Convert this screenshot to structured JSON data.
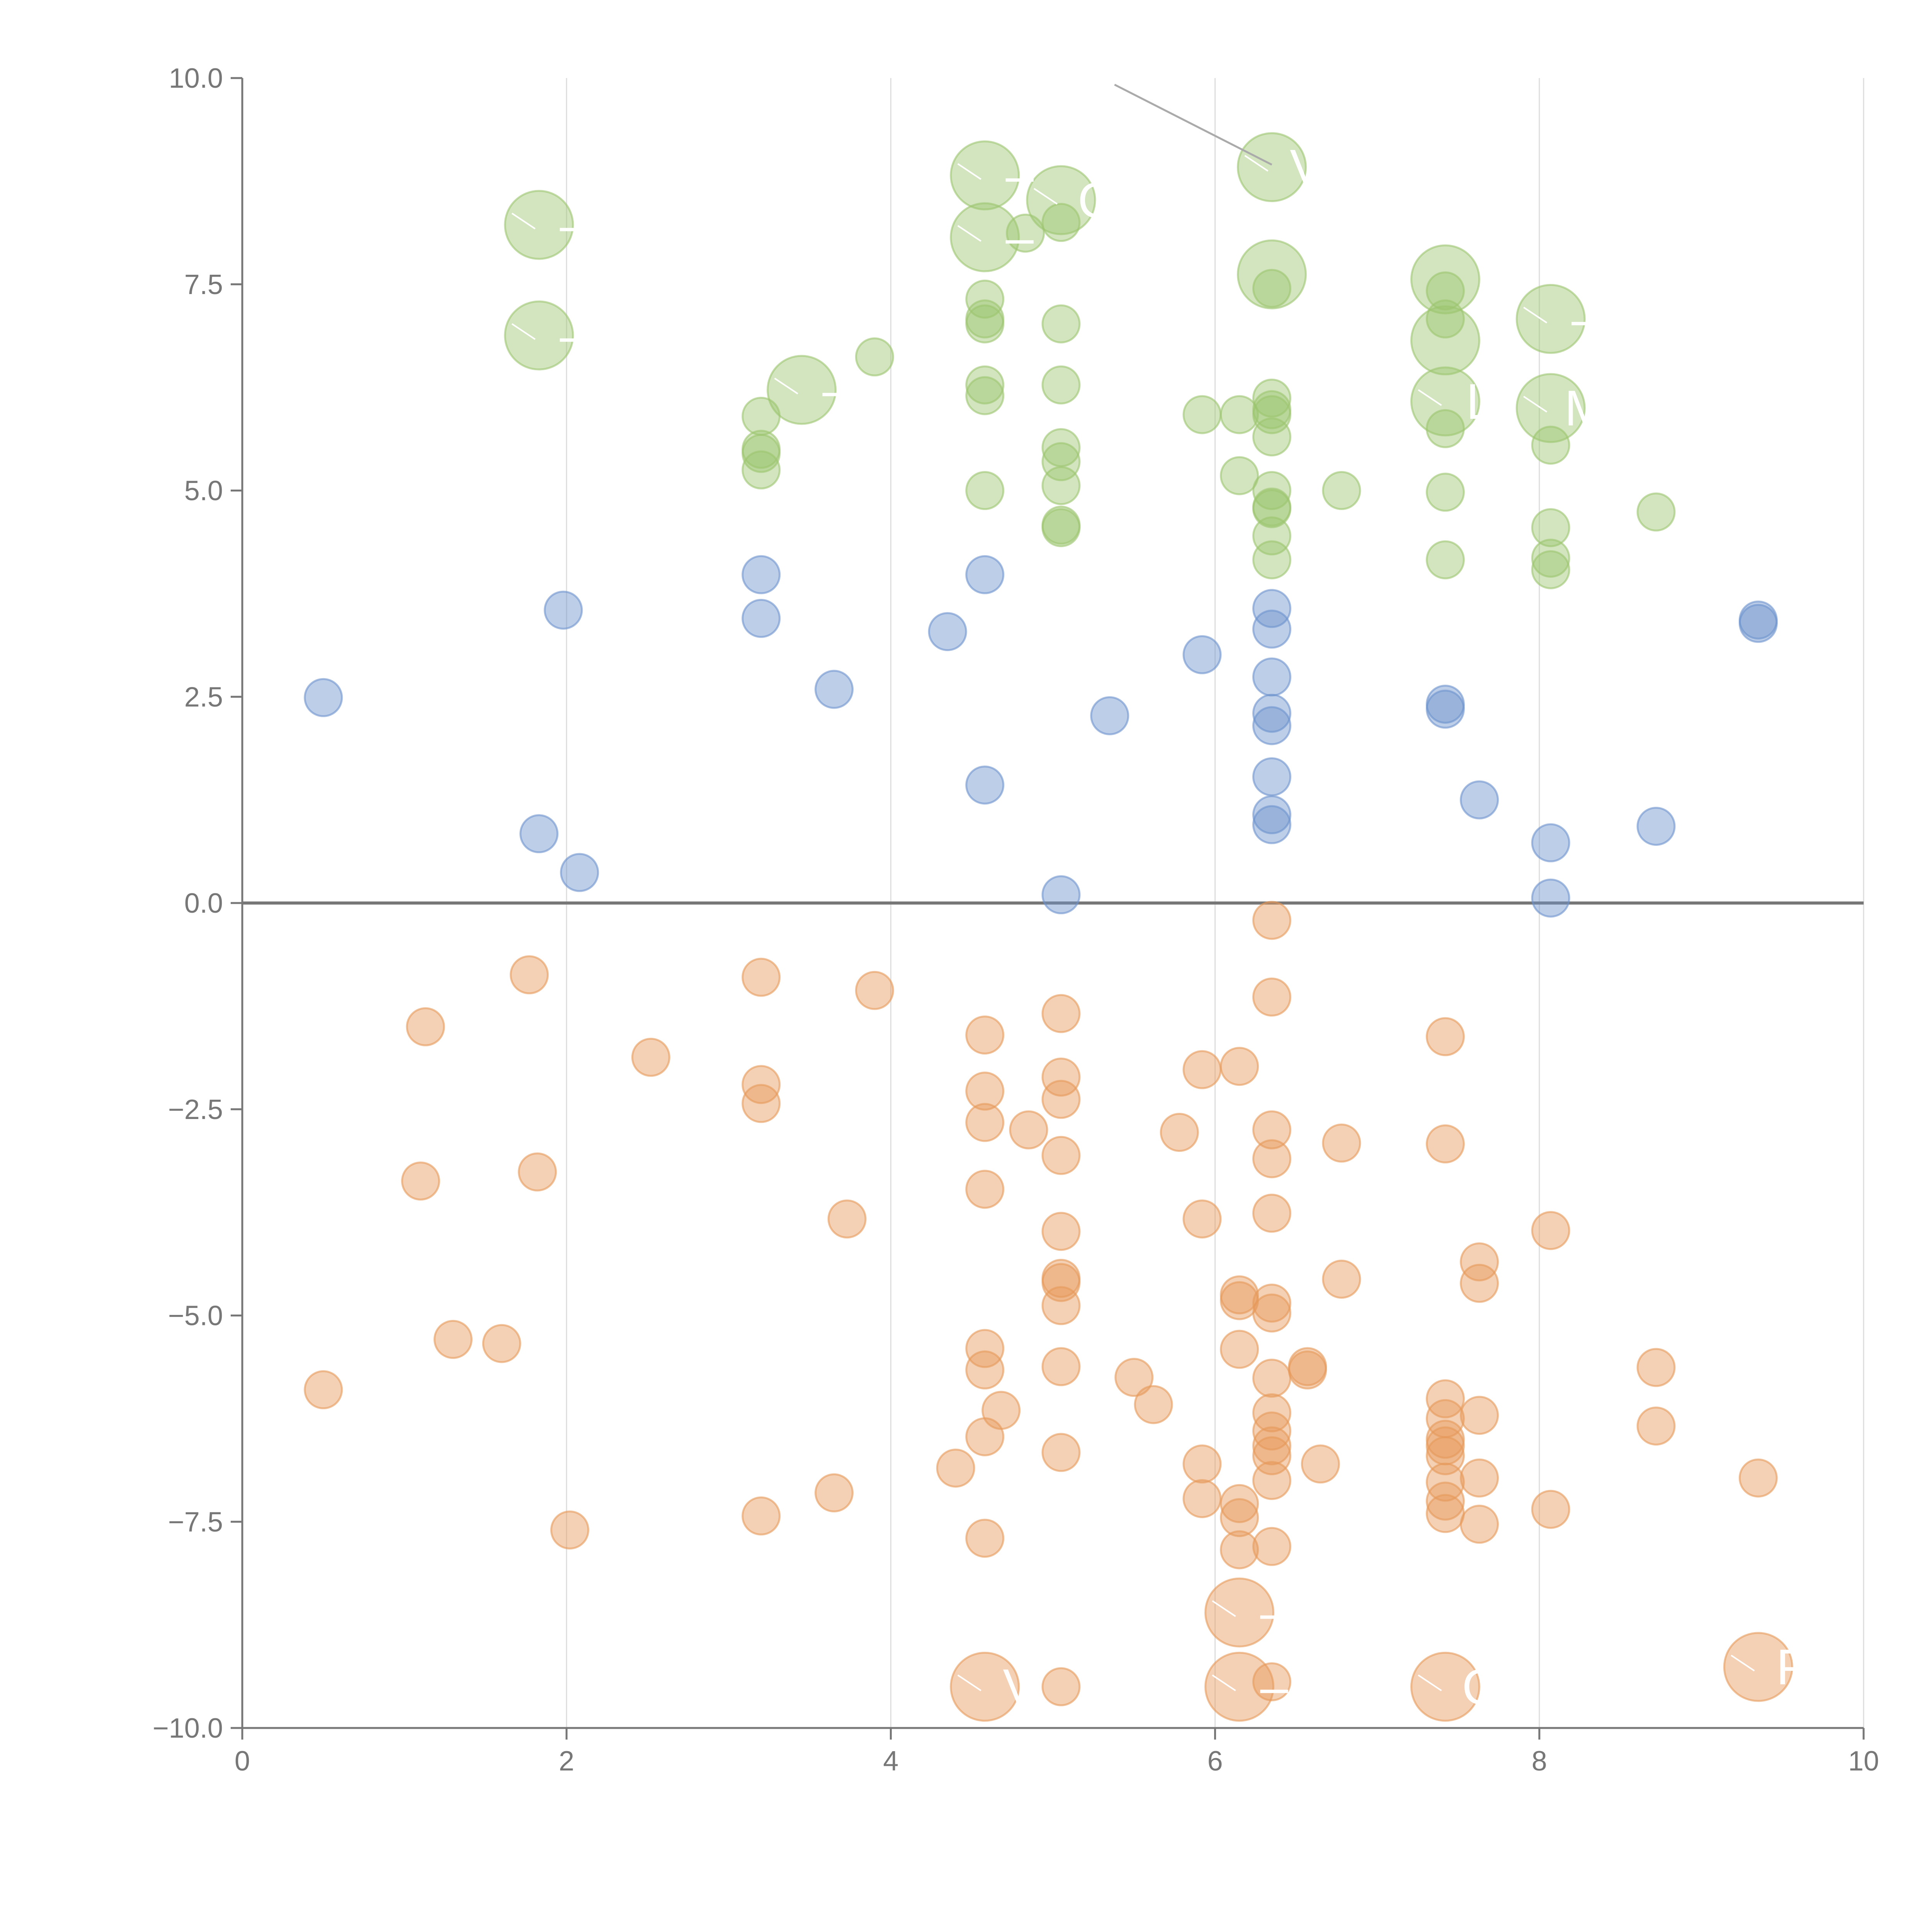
{
  "chart_data": {
    "type": "scatter",
    "title": "",
    "xlabel": "",
    "ylabel": "",
    "xlim": [
      0,
      10
    ],
    "ylim": [
      -10,
      10
    ],
    "x_ticks": [
      "0",
      "2",
      "4",
      "6",
      "8",
      "10"
    ],
    "y_ticks": [
      "10.0",
      "7.5",
      "5.0",
      "2.5",
      "0.0",
      "−2.5",
      "−5.0",
      "−7.5",
      "−10.0"
    ],
    "grid": "vertical",
    "zero_line": true,
    "colors": {
      "green": "#9cc56f",
      "blue": "#6d93cd",
      "orange": "#e6995a",
      "axis": "#777777",
      "grid": "#dddddd"
    },
    "series": [
      {
        "name": "green",
        "points": [
          {
            "x": 1.83,
            "y": 8.22,
            "big": true,
            "label": "–"
          },
          {
            "x": 1.83,
            "y": 6.88,
            "big": true,
            "label": "–"
          },
          {
            "x": 3.45,
            "y": 6.22,
            "big": true,
            "label": "–"
          },
          {
            "x": 4.58,
            "y": 8.82,
            "big": true,
            "label": "–"
          },
          {
            "x": 4.58,
            "y": 8.07,
            "big": true,
            "label": "–"
          },
          {
            "x": 5.05,
            "y": 8.52,
            "big": true,
            "label": "C"
          },
          {
            "x": 6.35,
            "y": 8.92,
            "big": true,
            "label": "V"
          },
          {
            "x": 6.35,
            "y": 7.62,
            "big": true,
            "label": ""
          },
          {
            "x": 7.42,
            "y": 7.56,
            "big": true,
            "label": ""
          },
          {
            "x": 7.42,
            "y": 6.82,
            "big": true,
            "label": ""
          },
          {
            "x": 7.42,
            "y": 6.08,
            "big": true,
            "label": "L"
          },
          {
            "x": 8.07,
            "y": 7.08,
            "big": true,
            "label": "–"
          },
          {
            "x": 8.07,
            "y": 6.0,
            "big": true,
            "label": "M"
          },
          {
            "x": 3.2,
            "y": 5.9
          },
          {
            "x": 3.2,
            "y": 5.5
          },
          {
            "x": 3.2,
            "y": 5.45
          },
          {
            "x": 3.2,
            "y": 5.25
          },
          {
            "x": 3.9,
            "y": 6.62
          },
          {
            "x": 4.58,
            "y": 7.32
          },
          {
            "x": 4.58,
            "y": 7.08
          },
          {
            "x": 4.58,
            "y": 7.02
          },
          {
            "x": 4.58,
            "y": 6.28
          },
          {
            "x": 4.58,
            "y": 6.15
          },
          {
            "x": 4.58,
            "y": 5.0
          },
          {
            "x": 4.83,
            "y": 8.12
          },
          {
            "x": 5.05,
            "y": 8.25
          },
          {
            "x": 5.05,
            "y": 7.02
          },
          {
            "x": 5.05,
            "y": 6.28
          },
          {
            "x": 5.05,
            "y": 5.52
          },
          {
            "x": 5.05,
            "y": 5.35
          },
          {
            "x": 5.05,
            "y": 5.06
          },
          {
            "x": 5.05,
            "y": 4.58
          },
          {
            "x": 5.05,
            "y": 4.55
          },
          {
            "x": 5.92,
            "y": 5.92
          },
          {
            "x": 6.15,
            "y": 5.92
          },
          {
            "x": 6.15,
            "y": 5.18
          },
          {
            "x": 6.35,
            "y": 7.45
          },
          {
            "x": 6.35,
            "y": 6.12
          },
          {
            "x": 6.35,
            "y": 5.98
          },
          {
            "x": 6.35,
            "y": 5.92
          },
          {
            "x": 6.35,
            "y": 5.65
          },
          {
            "x": 6.35,
            "y": 5.0
          },
          {
            "x": 6.35,
            "y": 4.8
          },
          {
            "x": 6.35,
            "y": 4.78
          },
          {
            "x": 6.35,
            "y": 4.45
          },
          {
            "x": 6.35,
            "y": 4.16
          },
          {
            "x": 6.78,
            "y": 5.0
          },
          {
            "x": 7.42,
            "y": 7.42
          },
          {
            "x": 7.42,
            "y": 7.08
          },
          {
            "x": 7.42,
            "y": 5.75
          },
          {
            "x": 7.42,
            "y": 4.98
          },
          {
            "x": 7.42,
            "y": 4.16
          },
          {
            "x": 8.07,
            "y": 5.55
          },
          {
            "x": 8.07,
            "y": 4.55
          },
          {
            "x": 8.07,
            "y": 4.18
          },
          {
            "x": 8.07,
            "y": 4.04
          },
          {
            "x": 8.72,
            "y": 4.74
          }
        ]
      },
      {
        "name": "blue",
        "points": [
          {
            "x": 0.5,
            "y": 2.49
          },
          {
            "x": 1.83,
            "y": 0.84
          },
          {
            "x": 1.98,
            "y": 3.55
          },
          {
            "x": 2.08,
            "y": 0.37
          },
          {
            "x": 3.2,
            "y": 3.98
          },
          {
            "x": 3.2,
            "y": 3.45
          },
          {
            "x": 3.65,
            "y": 2.59
          },
          {
            "x": 4.35,
            "y": 3.29
          },
          {
            "x": 4.58,
            "y": 3.98
          },
          {
            "x": 4.58,
            "y": 1.43
          },
          {
            "x": 5.05,
            "y": 0.1
          },
          {
            "x": 5.35,
            "y": 2.27
          },
          {
            "x": 5.92,
            "y": 3.01
          },
          {
            "x": 6.35,
            "y": 3.57
          },
          {
            "x": 6.35,
            "y": 3.32
          },
          {
            "x": 6.35,
            "y": 2.74
          },
          {
            "x": 6.35,
            "y": 2.3
          },
          {
            "x": 6.35,
            "y": 2.15
          },
          {
            "x": 6.35,
            "y": 1.53
          },
          {
            "x": 6.35,
            "y": 1.07
          },
          {
            "x": 6.35,
            "y": 0.95
          },
          {
            "x": 7.42,
            "y": 2.41
          },
          {
            "x": 7.42,
            "y": 2.35
          },
          {
            "x": 7.63,
            "y": 1.25
          },
          {
            "x": 8.07,
            "y": 0.73
          },
          {
            "x": 8.07,
            "y": 0.06
          },
          {
            "x": 8.72,
            "y": 0.93
          },
          {
            "x": 9.35,
            "y": 3.43
          },
          {
            "x": 9.35,
            "y": 3.39
          }
        ]
      },
      {
        "name": "orange",
        "points": [
          {
            "x": 4.58,
            "y": -9.5,
            "big": true,
            "label": "V"
          },
          {
            "x": 6.15,
            "y": -8.6,
            "big": true,
            "label": "–"
          },
          {
            "x": 6.15,
            "y": -9.5,
            "big": true,
            "label": "–"
          },
          {
            "x": 7.42,
            "y": -9.5,
            "big": true,
            "label": "C"
          },
          {
            "x": 9.35,
            "y": -9.26,
            "big": true,
            "label": "P"
          },
          {
            "x": 0.5,
            "y": -5.9
          },
          {
            "x": 1.1,
            "y": -3.37
          },
          {
            "x": 1.13,
            "y": -1.5
          },
          {
            "x": 1.3,
            "y": -5.29
          },
          {
            "x": 1.6,
            "y": -5.34
          },
          {
            "x": 1.77,
            "y": -0.87
          },
          {
            "x": 1.82,
            "y": -3.26
          },
          {
            "x": 2.02,
            "y": -7.6
          },
          {
            "x": 2.52,
            "y": -1.87
          },
          {
            "x": 3.2,
            "y": -0.9
          },
          {
            "x": 3.2,
            "y": -2.2
          },
          {
            "x": 3.2,
            "y": -2.43
          },
          {
            "x": 3.2,
            "y": -7.43
          },
          {
            "x": 3.65,
            "y": -7.15
          },
          {
            "x": 3.73,
            "y": -3.83
          },
          {
            "x": 3.9,
            "y": -1.06
          },
          {
            "x": 4.4,
            "y": -6.85
          },
          {
            "x": 4.58,
            "y": -1.6
          },
          {
            "x": 4.58,
            "y": -2.28
          },
          {
            "x": 4.58,
            "y": -2.66
          },
          {
            "x": 4.58,
            "y": -3.47
          },
          {
            "x": 4.58,
            "y": -5.4
          },
          {
            "x": 4.58,
            "y": -5.66
          },
          {
            "x": 4.58,
            "y": -6.47
          },
          {
            "x": 4.58,
            "y": -7.7
          },
          {
            "x": 4.68,
            "y": -6.15
          },
          {
            "x": 4.85,
            "y": -2.75
          },
          {
            "x": 5.05,
            "y": -1.34
          },
          {
            "x": 5.05,
            "y": -2.11
          },
          {
            "x": 5.05,
            "y": -2.38
          },
          {
            "x": 5.05,
            "y": -3.06
          },
          {
            "x": 5.05,
            "y": -3.98
          },
          {
            "x": 5.05,
            "y": -4.55
          },
          {
            "x": 5.05,
            "y": -4.6
          },
          {
            "x": 5.05,
            "y": -4.88
          },
          {
            "x": 5.05,
            "y": -5.62
          },
          {
            "x": 5.05,
            "y": -6.66
          },
          {
            "x": 5.05,
            "y": -9.5
          },
          {
            "x": 5.5,
            "y": -5.75
          },
          {
            "x": 5.62,
            "y": -6.08
          },
          {
            "x": 5.78,
            "y": -2.78
          },
          {
            "x": 5.92,
            "y": -2.02
          },
          {
            "x": 5.92,
            "y": -3.83
          },
          {
            "x": 5.92,
            "y": -6.8
          },
          {
            "x": 5.92,
            "y": -7.22
          },
          {
            "x": 6.15,
            "y": -1.98
          },
          {
            "x": 6.15,
            "y": -4.75
          },
          {
            "x": 6.15,
            "y": -4.82
          },
          {
            "x": 6.15,
            "y": -5.41
          },
          {
            "x": 6.15,
            "y": -7.28
          },
          {
            "x": 6.15,
            "y": -7.45
          },
          {
            "x": 6.15,
            "y": -7.84
          },
          {
            "x": 6.35,
            "y": -0.21
          },
          {
            "x": 6.35,
            "y": -1.14
          },
          {
            "x": 6.35,
            "y": -2.75
          },
          {
            "x": 6.35,
            "y": -3.1
          },
          {
            "x": 6.35,
            "y": -3.76
          },
          {
            "x": 6.35,
            "y": -4.85
          },
          {
            "x": 6.35,
            "y": -4.97
          },
          {
            "x": 6.35,
            "y": -5.76
          },
          {
            "x": 6.35,
            "y": -6.18
          },
          {
            "x": 6.35,
            "y": -6.4
          },
          {
            "x": 6.35,
            "y": -6.58
          },
          {
            "x": 6.35,
            "y": -6.7
          },
          {
            "x": 6.35,
            "y": -7.0
          },
          {
            "x": 6.35,
            "y": -7.8
          },
          {
            "x": 6.35,
            "y": -9.44
          },
          {
            "x": 6.57,
            "y": -5.62
          },
          {
            "x": 6.57,
            "y": -5.66
          },
          {
            "x": 6.65,
            "y": -6.8
          },
          {
            "x": 6.78,
            "y": -2.91
          },
          {
            "x": 6.78,
            "y": -4.56
          },
          {
            "x": 7.42,
            "y": -1.62
          },
          {
            "x": 7.42,
            "y": -2.92
          },
          {
            "x": 7.42,
            "y": -6.01
          },
          {
            "x": 7.42,
            "y": -6.25
          },
          {
            "x": 7.42,
            "y": -6.5
          },
          {
            "x": 7.42,
            "y": -6.58
          },
          {
            "x": 7.42,
            "y": -6.7
          },
          {
            "x": 7.42,
            "y": -7.02
          },
          {
            "x": 7.42,
            "y": -7.25
          },
          {
            "x": 7.42,
            "y": -7.4
          },
          {
            "x": 7.63,
            "y": -4.35
          },
          {
            "x": 7.63,
            "y": -4.61
          },
          {
            "x": 7.63,
            "y": -6.21
          },
          {
            "x": 7.63,
            "y": -6.97
          },
          {
            "x": 7.63,
            "y": -7.53
          },
          {
            "x": 8.07,
            "y": -3.97
          },
          {
            "x": 8.07,
            "y": -7.35
          },
          {
            "x": 8.72,
            "y": -5.63
          },
          {
            "x": 8.72,
            "y": -6.34
          },
          {
            "x": 9.35,
            "y": -6.97
          }
        ]
      }
    ]
  }
}
